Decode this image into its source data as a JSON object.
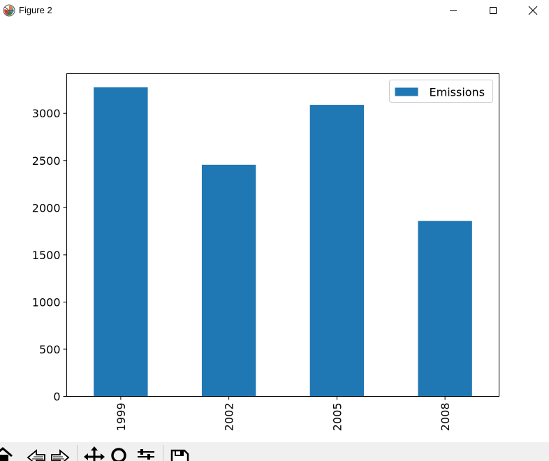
{
  "window": {
    "title": "Figure 2",
    "icons": {
      "app": "matplotlib-icon",
      "minimize": "minimize-icon",
      "maximize": "maximize-icon",
      "close": "close-icon"
    }
  },
  "toolbar": {
    "tools": [
      "home-icon",
      "back-icon",
      "forward-icon",
      "pan-icon",
      "zoom-icon",
      "configure-subplots-icon",
      "save-icon"
    ]
  },
  "chart_data": {
    "type": "bar",
    "categories": [
      "1999",
      "2002",
      "2005",
      "2008"
    ],
    "series": [
      {
        "name": "Emissions",
        "values": [
          3275,
          2455,
          3090,
          1860
        ],
        "color": "#1f77b4"
      }
    ],
    "ylim": [
      0,
      3420
    ],
    "yticks": [
      0,
      500,
      1000,
      1500,
      2000,
      2500,
      3000
    ],
    "xtick_rotation": 90,
    "legend": "upper-right",
    "grid": false
  }
}
